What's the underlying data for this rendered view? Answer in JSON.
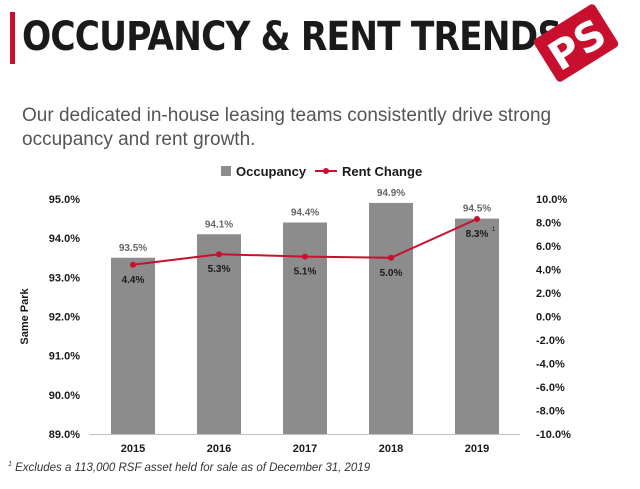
{
  "header": {
    "title": "OCCUPANCY & RENT TRENDS",
    "logo_text": "PS",
    "subtitle": "Our dedicated in-house leasing teams consistently drive strong occupancy and rent growth."
  },
  "footnote": {
    "marker": "1",
    "text": "Excludes a 113,000 RSF asset held for sale as of December 31, 2019"
  },
  "colors": {
    "accent": "#c8102e",
    "bar": "#8c8c8c",
    "line": "#c8102e"
  },
  "chart_data": {
    "type": "bar",
    "categories": [
      "2015",
      "2016",
      "2017",
      "2018",
      "2019"
    ],
    "series": [
      {
        "name": "Occupancy",
        "kind": "bar",
        "axis": "left",
        "values": [
          93.5,
          94.1,
          94.4,
          94.9,
          94.5
        ],
        "labels": [
          "93.5%",
          "94.1%",
          "94.4%",
          "94.9%",
          "94.5%"
        ]
      },
      {
        "name": "Rent Change",
        "kind": "line",
        "axis": "right",
        "values": [
          4.4,
          5.3,
          5.1,
          5.0,
          8.3
        ],
        "labels": [
          "4.4%",
          "5.3%",
          "5.1%",
          "5.0%",
          "8.3%"
        ],
        "footnote_marker_index": 4,
        "footnote_marker": "1"
      }
    ],
    "ylabel": "Same Park",
    "y_left": {
      "lim": [
        89.0,
        95.0
      ],
      "ticks": [
        89.0,
        90.0,
        91.0,
        92.0,
        93.0,
        94.0,
        95.0
      ],
      "tick_labels": [
        "89.0%",
        "90.0%",
        "91.0%",
        "92.0%",
        "93.0%",
        "94.0%",
        "95.0%"
      ]
    },
    "y_right": {
      "lim": [
        -10.0,
        10.0
      ],
      "ticks": [
        -10,
        -8,
        -6,
        -4,
        -2,
        0,
        2,
        4,
        6,
        8,
        10
      ],
      "tick_labels": [
        "-10.0%",
        "-8.0%",
        "-6.0%",
        "-4.0%",
        "-2.0%",
        "0.0%",
        "2.0%",
        "4.0%",
        "6.0%",
        "8.0%",
        "10.0%"
      ]
    },
    "legend": [
      "Occupancy",
      "Rent Change"
    ],
    "legend_position": "top-center",
    "grid": false
  }
}
